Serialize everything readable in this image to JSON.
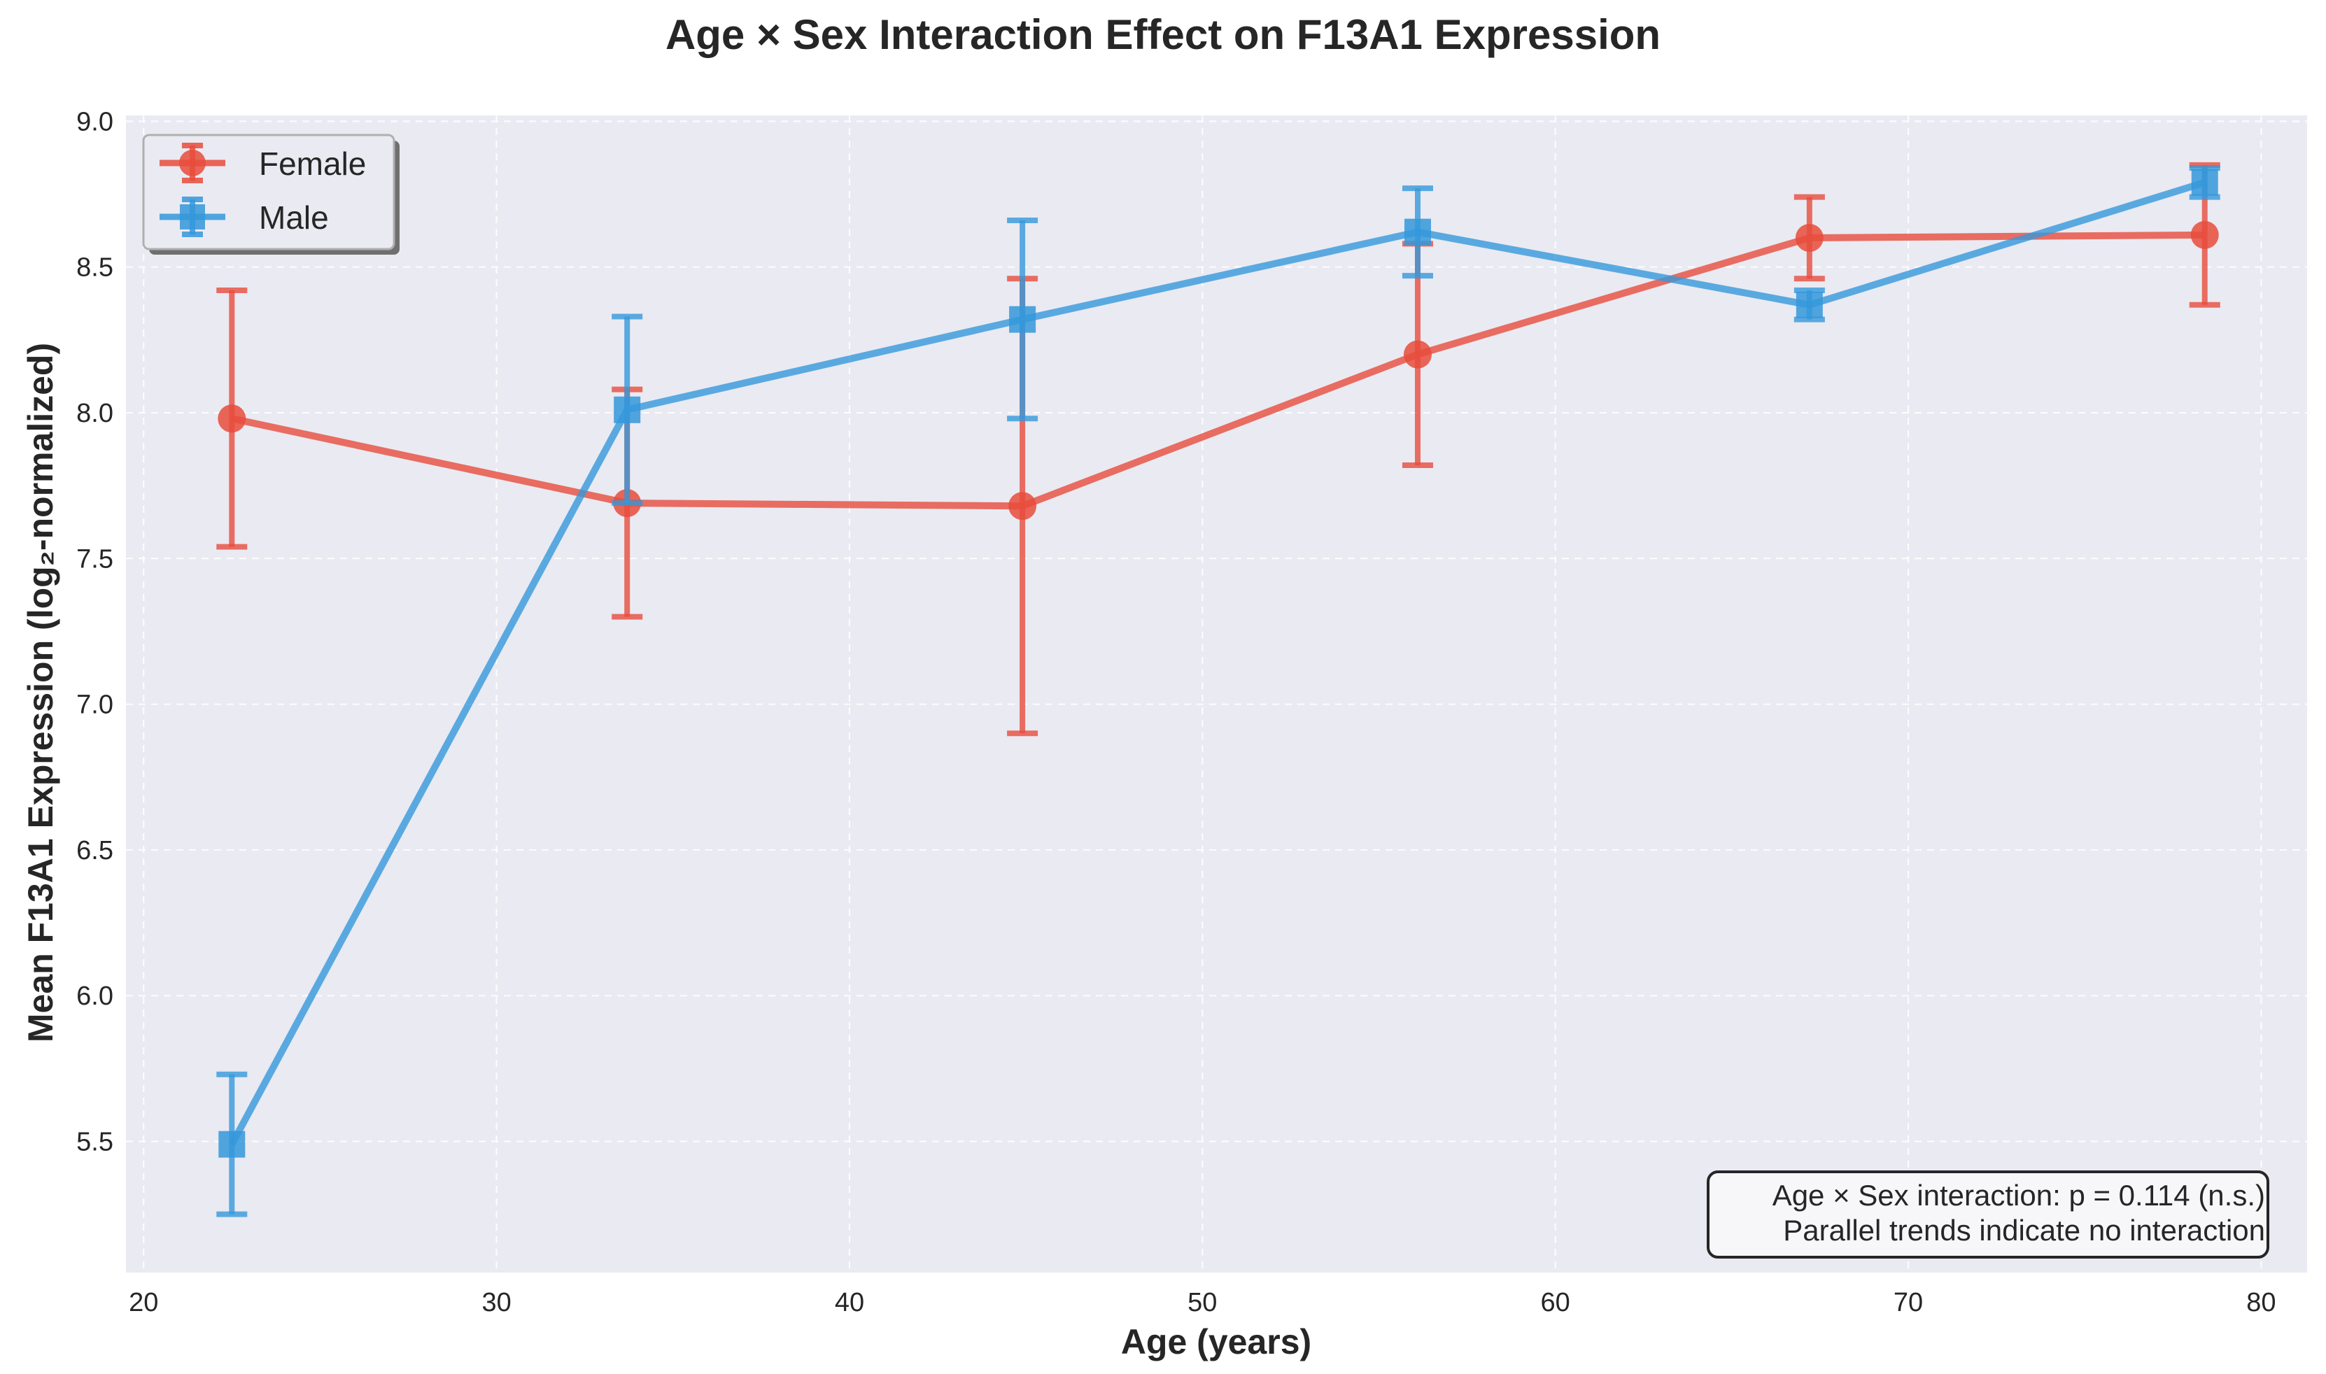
{
  "chart_data": {
    "type": "line",
    "title": "Age × Sex Interaction Effect on F13A1 Expression",
    "xlabel": "Age (years)",
    "ylabel": "Mean F13A1 Expression (log₂-normalized)",
    "xlim": [
      19.5,
      81.3
    ],
    "ylim": [
      5.05,
      9.02
    ],
    "xticks": [
      20,
      30,
      40,
      50,
      60,
      70,
      80
    ],
    "yticks": [
      5.5,
      6.0,
      6.5,
      7.0,
      7.5,
      8.0,
      8.5,
      9.0
    ],
    "ytick_labels": [
      "5.5",
      "6.0",
      "6.5",
      "7.0",
      "7.5",
      "8.0",
      "8.5",
      "9.0"
    ],
    "grid": true,
    "legend_position": "top-left",
    "series": [
      {
        "name": "Female",
        "color": "#e74c3c",
        "marker": "circle",
        "x": [
          22.5,
          33.7,
          44.9,
          56.1,
          67.2,
          78.4
        ],
        "y": [
          7.98,
          7.69,
          7.68,
          8.2,
          8.6,
          8.61
        ],
        "err": [
          0.44,
          0.39,
          0.78,
          0.38,
          0.14,
          0.24
        ]
      },
      {
        "name": "Male",
        "color": "#3498db",
        "marker": "square",
        "x": [
          22.5,
          33.7,
          44.9,
          56.1,
          67.2,
          78.4
        ],
        "y": [
          5.49,
          8.01,
          8.32,
          8.62,
          8.37,
          8.79
        ],
        "err": [
          0.24,
          0.32,
          0.34,
          0.15,
          0.05,
          0.05
        ]
      }
    ],
    "annotation": [
      "Age × Sex interaction: p = 0.114 (n.s.)",
      "Parallel trends indicate no interaction"
    ]
  }
}
